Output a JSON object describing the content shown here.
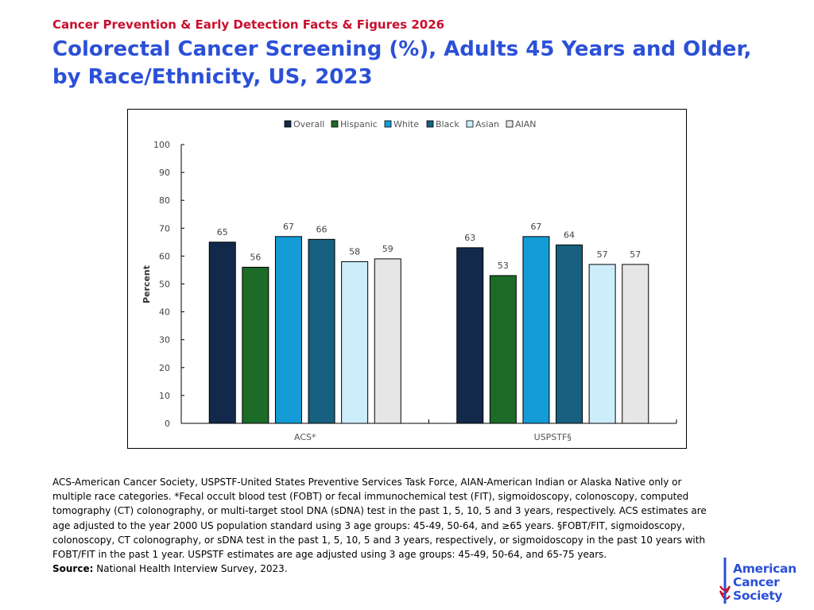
{
  "header": {
    "supertitle": "Cancer Prevention & Early Detection Facts & Figures 2026",
    "title": "Colorectal Cancer Screening (%), Adults 45 Years and Older, by Race/Ethnicity, US, 2023"
  },
  "chart_data": {
    "type": "bar",
    "categories": [
      "ACS*",
      "USPSTF§"
    ],
    "series": [
      {
        "name": "Overall",
        "color": "#13294b",
        "values": [
          65,
          63
        ]
      },
      {
        "name": "Hispanic",
        "color": "#1c6b27",
        "values": [
          56,
          53
        ]
      },
      {
        "name": "White",
        "color": "#149cd6",
        "values": [
          67,
          67
        ]
      },
      {
        "name": "Black",
        "color": "#17607f",
        "values": [
          66,
          64
        ]
      },
      {
        "name": "Asian",
        "color": "#cceefb",
        "values": [
          58,
          57
        ]
      },
      {
        "name": "AIAN",
        "color": "#e6e6e6",
        "values": [
          59,
          57
        ]
      }
    ],
    "ylabel": "Percent",
    "ylim": [
      0,
      100
    ],
    "yticks": [
      0,
      10,
      20,
      30,
      40,
      50,
      60,
      70,
      80,
      90,
      100
    ],
    "legend_position": "top",
    "grid": false
  },
  "footnote": {
    "text": "ACS-American Cancer Society, USPSTF-United States Preventive Services Task Force, AIAN-American Indian or Alaska Native only or multiple race categories. *Fecal occult blood test (FOBT) or fecal immunochemical test (FIT), sigmoidoscopy, colonoscopy, computed tomography (CT) colonography, or multi-target stool DNA (sDNA) test in the past 1, 5, 10, 5 and 3 years, respectively. ACS estimates are age adjusted to the year 2000 US population standard using 3 age groups: 45-49, 50-64, and ≥65 years. §FOBT/FIT, sigmoidoscopy, colonoscopy, CT colonography, or sDNA test in the past 1, 5, 10, 5 and 3 years, respectively, or sigmoidoscopy in the past 10 years with FOBT/FIT in the past 1 year. USPSTF estimates are age adjusted using 3 age groups: 45-49, 50-64, and 65-75 years.",
    "source_label": "Source:",
    "source_text": "National Health Interview Survey, 2023."
  },
  "logo": {
    "lines": [
      "American",
      "Cancer",
      "Society"
    ],
    "brand_color": "#2b50d8",
    "icon": "sword-of-hope-icon"
  }
}
